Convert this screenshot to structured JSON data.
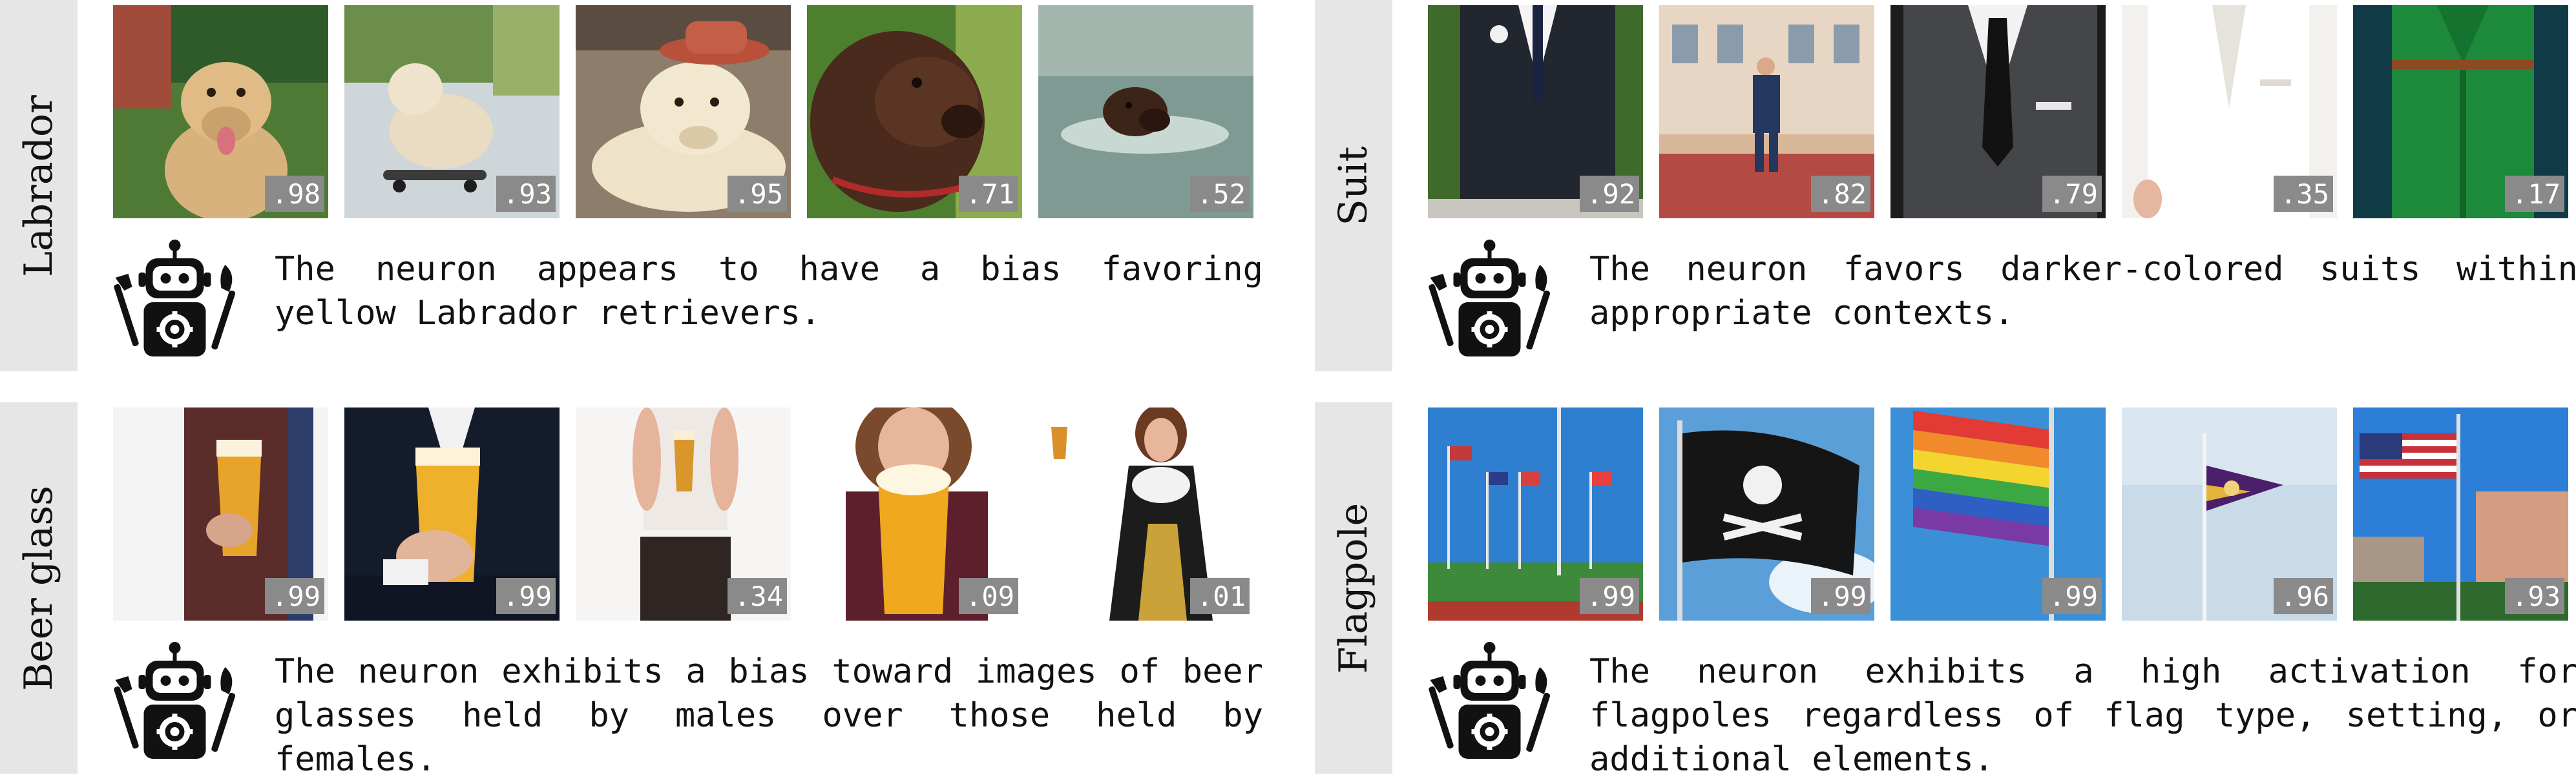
{
  "panels": [
    {
      "concept": "Labrador",
      "description": "The neuron appears to have a bias favoring yellow Labrador retrievers.",
      "images": [
        {
          "subject": "yellow-labrador-on-lawn-photo",
          "score": ".98"
        },
        {
          "subject": "labrador-on-skateboard-photo",
          "score": ".93"
        },
        {
          "subject": "labrador-wearing-hat-photo",
          "score": ".95"
        },
        {
          "subject": "chocolate-labrador-photo",
          "score": ".71"
        },
        {
          "subject": "labrador-swimming-photo",
          "score": ".52"
        }
      ]
    },
    {
      "concept": "Suit",
      "description": "The neuron favors darker-colored suits within appropriate contexts.",
      "images": [
        {
          "subject": "dark-suit-with-boutonniere-photo",
          "score": ".92"
        },
        {
          "subject": "man-in-navy-suit-outside-building-photo",
          "score": ".82"
        },
        {
          "subject": "grey-suit-and-tie-photo",
          "score": ".79"
        },
        {
          "subject": "white-suit-photo",
          "score": ".35"
        },
        {
          "subject": "green-suit-photo",
          "score": ".17"
        }
      ]
    },
    {
      "concept": "Beer glass",
      "description": "The neuron exhibits a bias toward images of beer glasses held by males over those held by females.",
      "images": [
        {
          "subject": "man-holding-beer-glass-photo",
          "score": ".99"
        },
        {
          "subject": "man-in-suit-holding-beer-photo",
          "score": ".99"
        },
        {
          "subject": "woman-holding-small-beer-photo",
          "score": ".34"
        },
        {
          "subject": "woman-holding-large-beer-photo",
          "score": ".09"
        },
        {
          "subject": "woman-in-dirndl-with-beer-photo",
          "score": ".01"
        }
      ]
    },
    {
      "concept": "Flagpole",
      "description": "The neuron exhibits a high activation for flagpoles regardless of flag type, setting, or additional elements.",
      "images": [
        {
          "subject": "row-of-flagpoles-on-field-photo",
          "score": ".99"
        },
        {
          "subject": "pirate-flag-on-pole-photo",
          "score": ".99"
        },
        {
          "subject": "rainbow-flag-on-pole-photo",
          "score": ".99"
        },
        {
          "subject": "purple-gold-flag-on-pole-photo",
          "score": ".96"
        },
        {
          "subject": "us-flag-near-buildings-photo",
          "score": ".93"
        }
      ]
    }
  ],
  "icons": {
    "robot": "robot-with-tools-icon"
  },
  "colors": {
    "label_bg": "#e6e6e6",
    "score_bg": "#8a8a8a",
    "score_text": "#ffffff",
    "text": "#111111"
  }
}
